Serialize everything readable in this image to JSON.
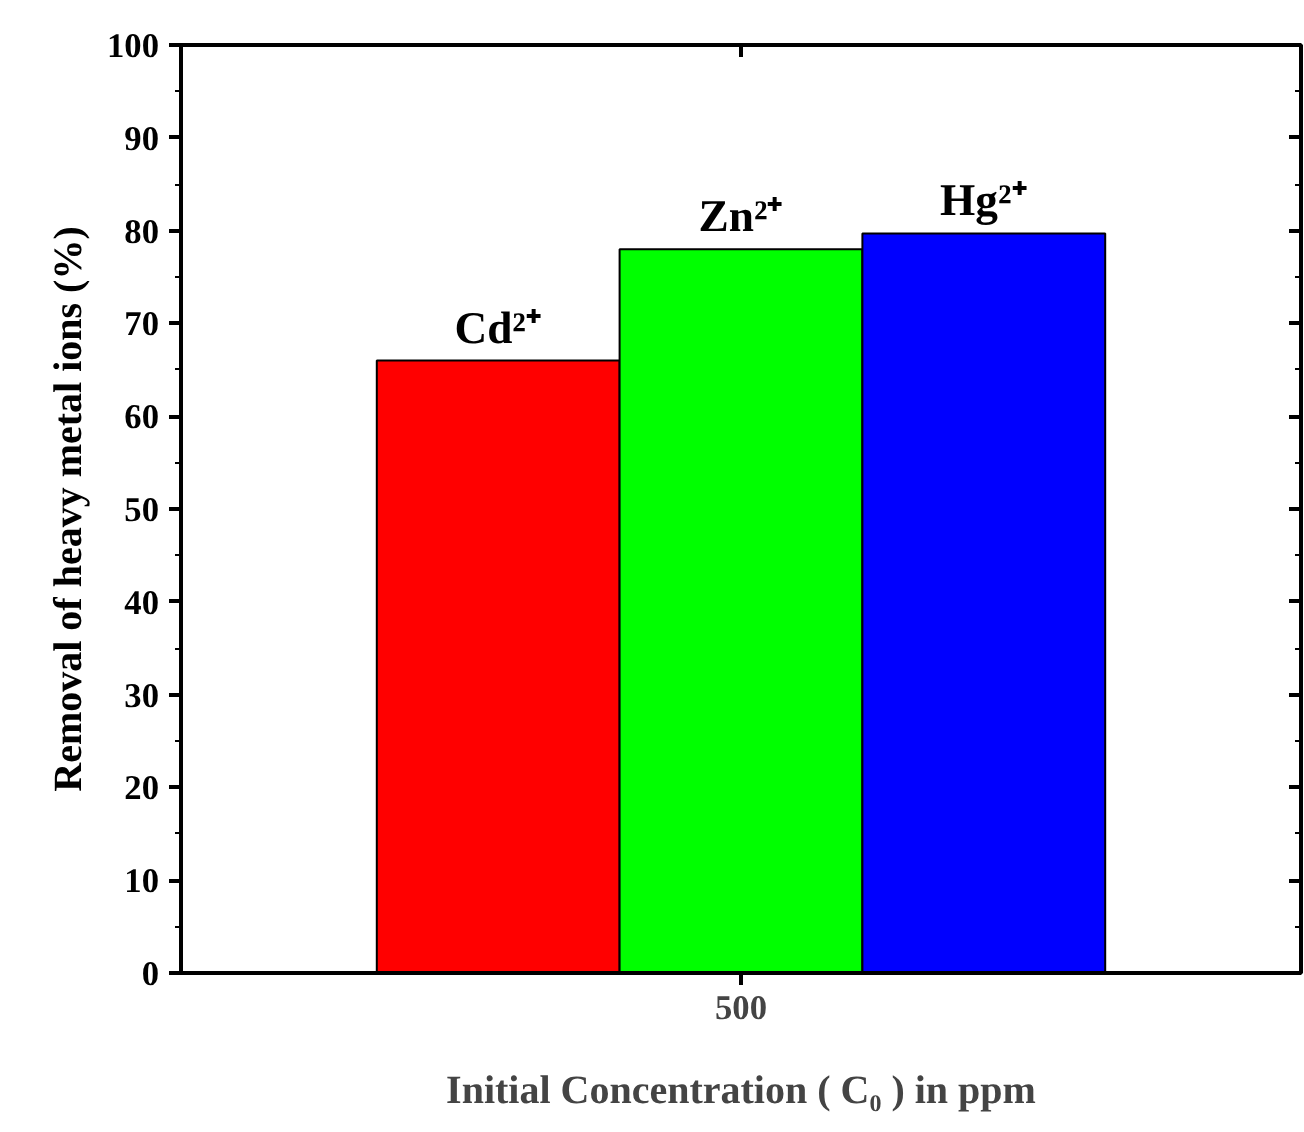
{
  "chart_data": {
    "type": "bar",
    "xlabel": "Initial Concentration ( C₀ ) in ppm",
    "ylabel": "Removal of heavy metal ions (%)",
    "categories": [
      "500"
    ],
    "series": [
      {
        "name": "Cd²⁺",
        "color": "#ff0000",
        "values": [
          66
        ]
      },
      {
        "name": "Zn²⁺",
        "color": "#00ff00",
        "values": [
          78
        ]
      },
      {
        "name": "Hg²⁺",
        "color": "#0000ff",
        "values": [
          79.7
        ]
      }
    ],
    "ylim": [
      0,
      100
    ],
    "yticks": [
      0,
      10,
      20,
      30,
      40,
      50,
      60,
      70,
      80,
      90,
      100
    ],
    "grid": false
  }
}
